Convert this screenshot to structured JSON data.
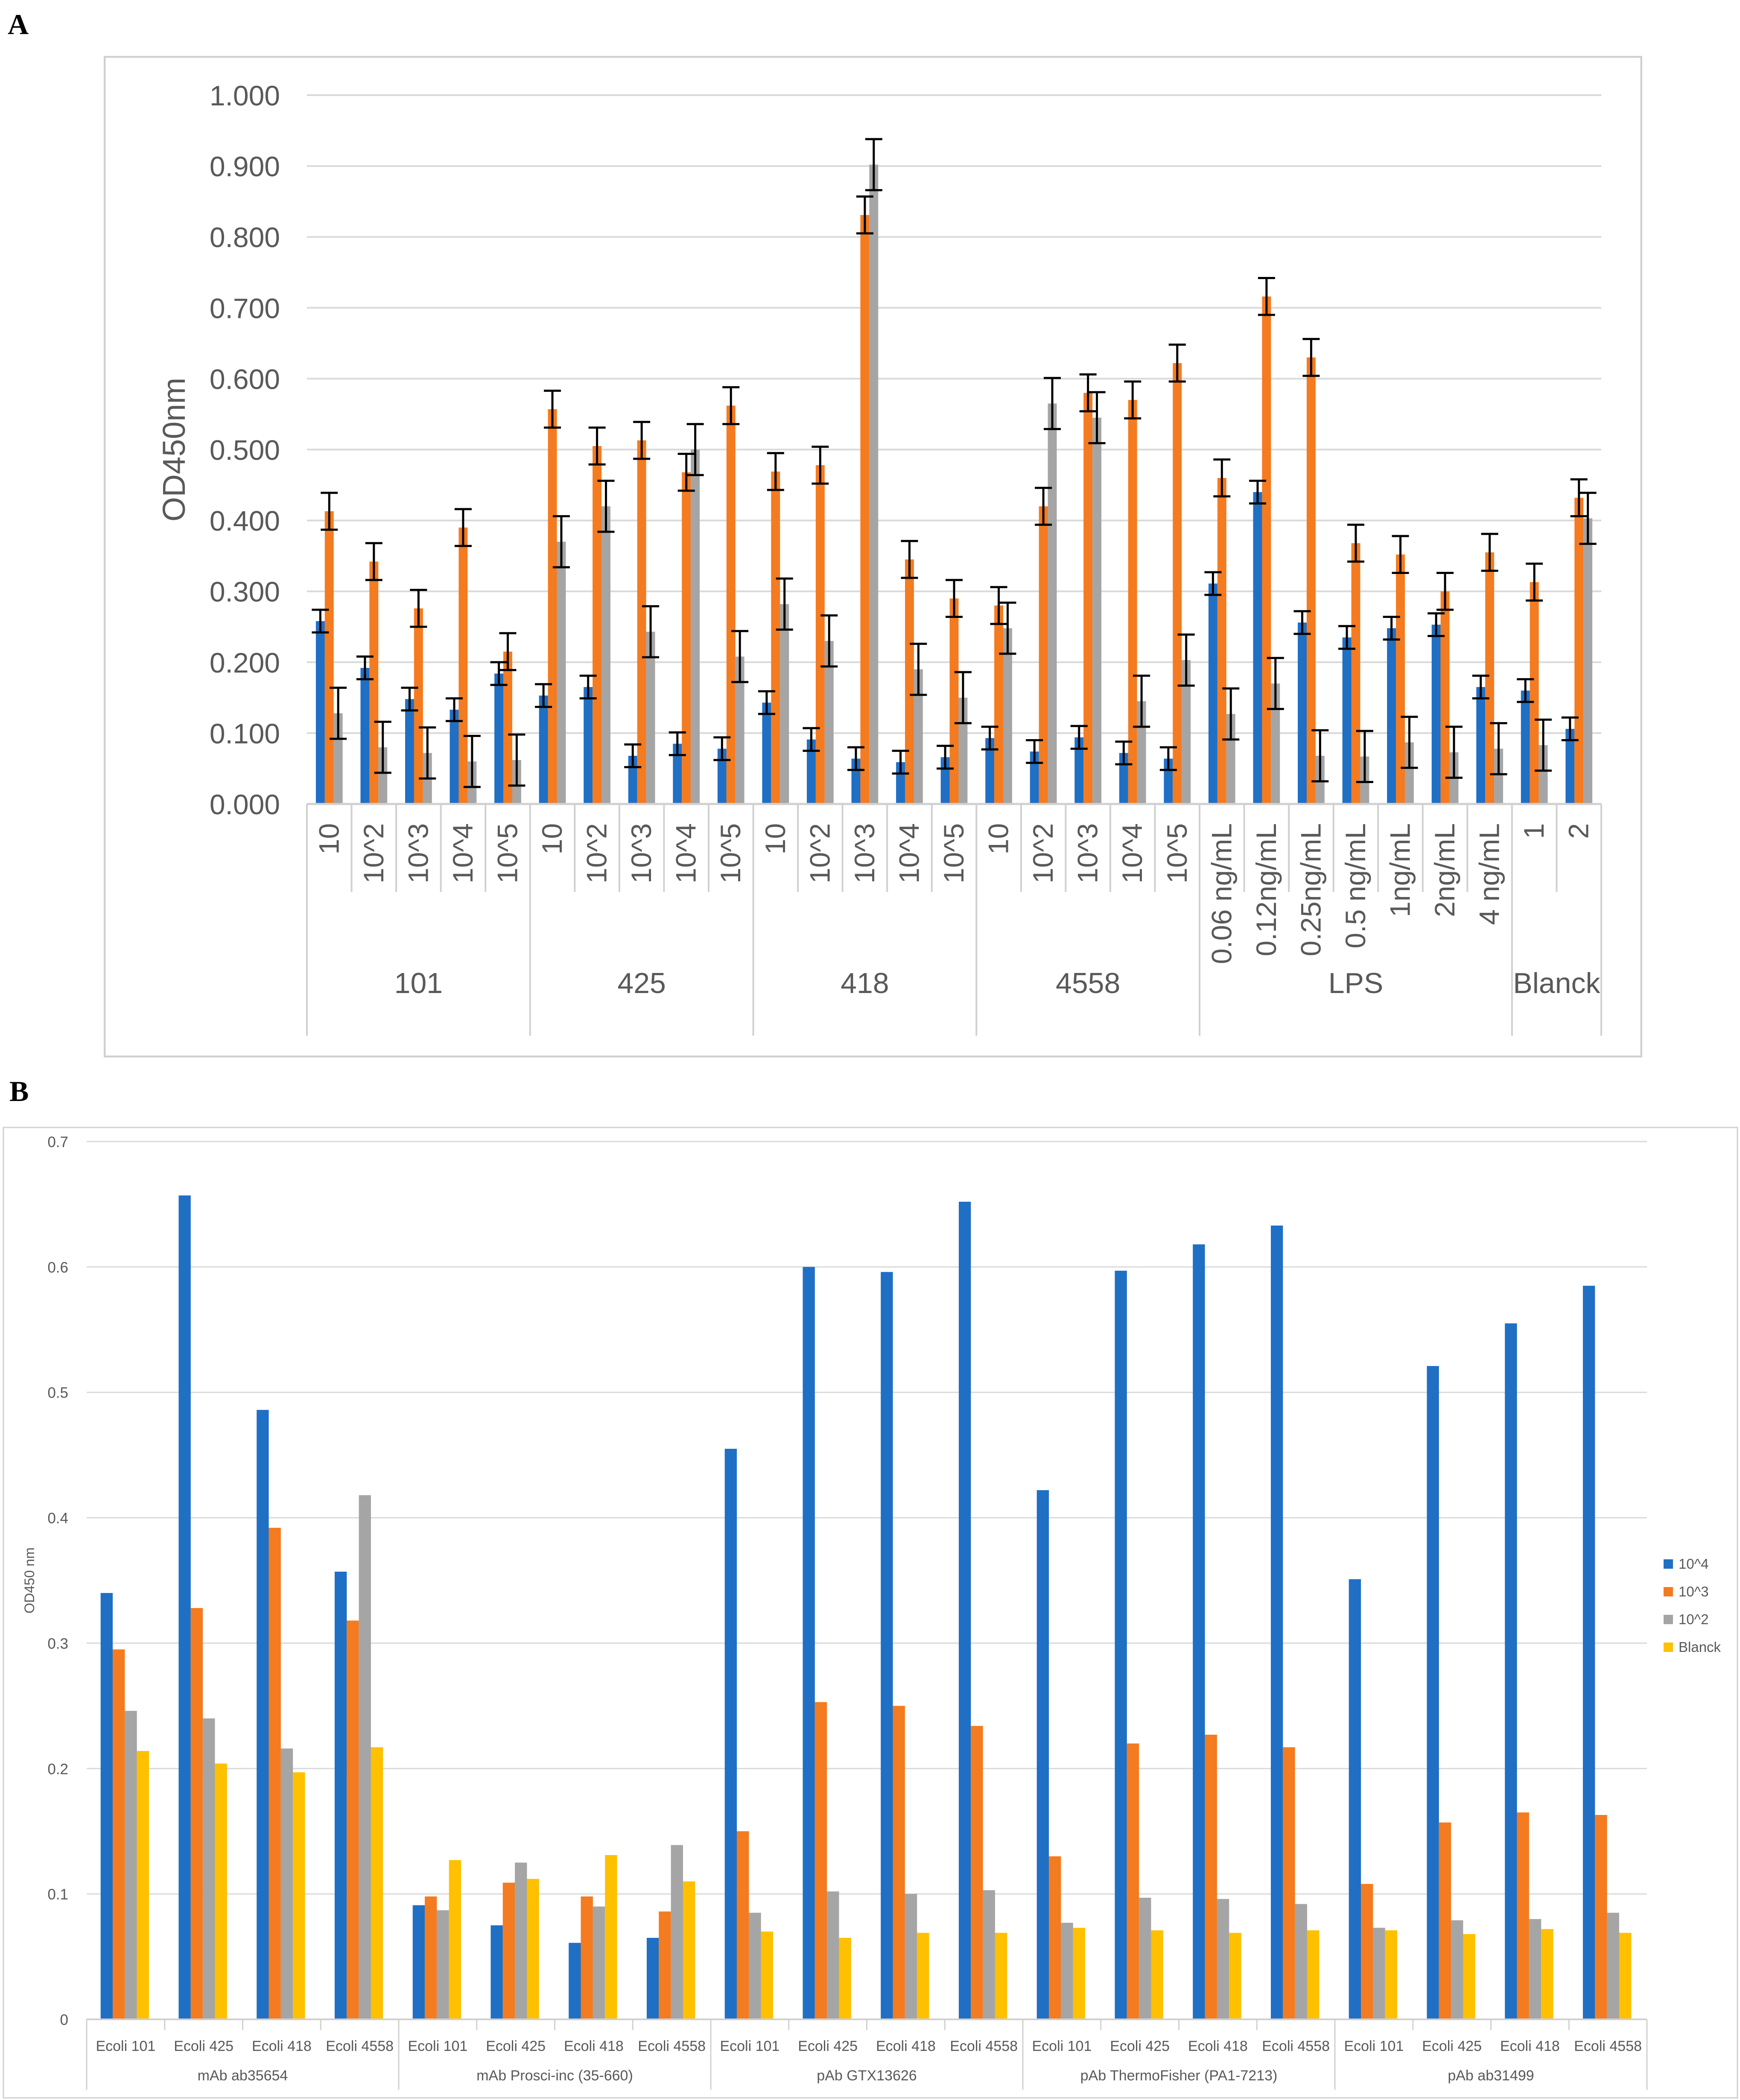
{
  "panel_a_label": "A",
  "panel_b_label": "B",
  "colors": {
    "blue": "#1f6fc5",
    "orange": "#f47b20",
    "gray": "#a5a5a5",
    "yellow": "#ffc000"
  },
  "chart_data": [
    {
      "type": "bar",
      "ylabel": "OD450nm",
      "ylim": [
        0,
        1
      ],
      "yticks": [
        "0.000",
        "0.100",
        "0.200",
        "0.300",
        "0.400",
        "0.500",
        "0.600",
        "0.700",
        "0.800",
        "0.900",
        "1.000"
      ],
      "grid": true,
      "legend": "none",
      "groups": [
        {
          "name": "101",
          "categories": [
            "10",
            "10^2",
            "10^3",
            "10^4",
            "10^5"
          ]
        },
        {
          "name": "425",
          "categories": [
            "10",
            "10^2",
            "10^3",
            "10^4",
            "10^5"
          ]
        },
        {
          "name": "418",
          "categories": [
            "10",
            "10^2",
            "10^3",
            "10^4",
            "10^5"
          ]
        },
        {
          "name": "4558",
          "categories": [
            "10",
            "10^2",
            "10^3",
            "10^4",
            "10^5"
          ]
        },
        {
          "name": "LPS",
          "categories": [
            "0.06 ng/mL",
            "0.12ng/mL",
            "0.25ng/mL",
            "0.5 ng/mL",
            "1ng/mL",
            "2ng/mL",
            "4 ng/mL"
          ]
        },
        {
          "name": "Blanck",
          "categories": [
            "1",
            "2"
          ]
        }
      ],
      "series": [
        {
          "name": "blue",
          "color": "#1f6fc5",
          "values": [
            0.258,
            0.192,
            0.148,
            0.133,
            0.184,
            0.153,
            0.165,
            0.068,
            0.085,
            0.078,
            0.143,
            0.091,
            0.064,
            0.059,
            0.066,
            0.093,
            0.074,
            0.094,
            0.072,
            0.064,
            0.311,
            0.44,
            0.256,
            0.235,
            0.248,
            0.253,
            0.165,
            0.16,
            0.106
          ],
          "errors": [
            0.016,
            0.016,
            0.016,
            0.016,
            0.016,
            0.016,
            0.016,
            0.016,
            0.016,
            0.016,
            0.016,
            0.016,
            0.016,
            0.016,
            0.016,
            0.016,
            0.016,
            0.016,
            0.016,
            0.016,
            0.016,
            0.016,
            0.016,
            0.016,
            0.016,
            0.016,
            0.016,
            0.016,
            0.016
          ]
        },
        {
          "name": "orange",
          "color": "#f47b20",
          "values": [
            0.413,
            0.342,
            0.276,
            0.39,
            0.215,
            0.557,
            0.505,
            0.513,
            0.468,
            0.562,
            0.469,
            0.478,
            0.831,
            0.345,
            0.29,
            0.28,
            0.42,
            0.58,
            0.57,
            0.622,
            0.46,
            0.716,
            0.63,
            0.368,
            0.352,
            0.3,
            0.355,
            0.313,
            0.432
          ],
          "errors": [
            0.026,
            0.026,
            0.026,
            0.026,
            0.026,
            0.026,
            0.026,
            0.026,
            0.026,
            0.026,
            0.026,
            0.026,
            0.026,
            0.026,
            0.026,
            0.026,
            0.026,
            0.026,
            0.026,
            0.026,
            0.026,
            0.026,
            0.026,
            0.026,
            0.026,
            0.026,
            0.026,
            0.026,
            0.026
          ]
        },
        {
          "name": "gray",
          "color": "#a5a5a5",
          "values": [
            0.128,
            0.08,
            0.072,
            0.06,
            0.062,
            0.37,
            0.42,
            0.243,
            0.5,
            0.208,
            0.282,
            0.23,
            0.902,
            0.19,
            0.15,
            0.248,
            0.565,
            0.545,
            0.145,
            0.203,
            0.127,
            0.17,
            0.068,
            0.067,
            0.087,
            0.073,
            0.078,
            0.083,
            0.403
          ],
          "errors": [
            0.036,
            0.036,
            0.036,
            0.036,
            0.036,
            0.036,
            0.036,
            0.036,
            0.036,
            0.036,
            0.036,
            0.036,
            0.036,
            0.036,
            0.036,
            0.036,
            0.036,
            0.036,
            0.036,
            0.036,
            0.036,
            0.036,
            0.036,
            0.036,
            0.036,
            0.036,
            0.036,
            0.036,
            0.036
          ]
        }
      ]
    },
    {
      "type": "bar",
      "ylabel": "OD450 nm",
      "ylim": [
        0,
        0.7
      ],
      "yticks": [
        "0",
        "0.1",
        "0.2",
        "0.3",
        "0.4",
        "0.5",
        "0.6",
        "0.7"
      ],
      "grid": true,
      "legend": "right",
      "groups": [
        {
          "name": "mAb ab35654",
          "categories": [
            "Ecoli 101",
            "Ecoli 425",
            "Ecoli 418",
            "Ecoli 4558"
          ]
        },
        {
          "name": "mAb Prosci-inc (35-660)",
          "categories": [
            "Ecoli 101",
            "Ecoli 425",
            "Ecoli 418",
            "Ecoli 4558"
          ]
        },
        {
          "name": "pAb GTX13626",
          "categories": [
            "Ecoli 101",
            "Ecoli 425",
            "Ecoli 418",
            "Ecoli 4558"
          ]
        },
        {
          "name": "pAb ThermoFisher (PA1-7213)",
          "categories": [
            "Ecoli 101",
            "Ecoli 425",
            "Ecoli 418",
            "Ecoli 4558"
          ]
        },
        {
          "name": "pAb ab31499",
          "categories": [
            "Ecoli 101",
            "Ecoli 425",
            "Ecoli 418",
            "Ecoli 4558"
          ]
        }
      ],
      "series": [
        {
          "name": "10^4",
          "color": "#1f6fc5",
          "values": [
            0.34,
            0.657,
            0.486,
            0.357,
            0.091,
            0.075,
            0.061,
            0.065,
            0.455,
            0.6,
            0.596,
            0.652,
            0.422,
            0.597,
            0.618,
            0.633,
            0.351,
            0.521,
            0.555,
            0.585
          ]
        },
        {
          "name": "10^3",
          "color": "#f47b20",
          "values": [
            0.295,
            0.328,
            0.392,
            0.318,
            0.098,
            0.109,
            0.098,
            0.086,
            0.15,
            0.253,
            0.25,
            0.234,
            0.13,
            0.22,
            0.227,
            0.217,
            0.108,
            0.157,
            0.165,
            0.163
          ]
        },
        {
          "name": "10^2",
          "color": "#a5a5a5",
          "values": [
            0.246,
            0.24,
            0.216,
            0.418,
            0.087,
            0.125,
            0.09,
            0.139,
            0.085,
            0.102,
            0.1,
            0.103,
            0.077,
            0.097,
            0.096,
            0.092,
            0.073,
            0.079,
            0.08,
            0.085
          ]
        },
        {
          "name": "Blanck",
          "color": "#ffc000",
          "values": [
            0.214,
            0.204,
            0.197,
            0.217,
            0.127,
            0.112,
            0.131,
            0.11,
            0.07,
            0.065,
            0.069,
            0.069,
            0.073,
            0.071,
            0.069,
            0.071,
            0.071,
            0.068,
            0.072,
            0.069
          ]
        }
      ]
    }
  ]
}
